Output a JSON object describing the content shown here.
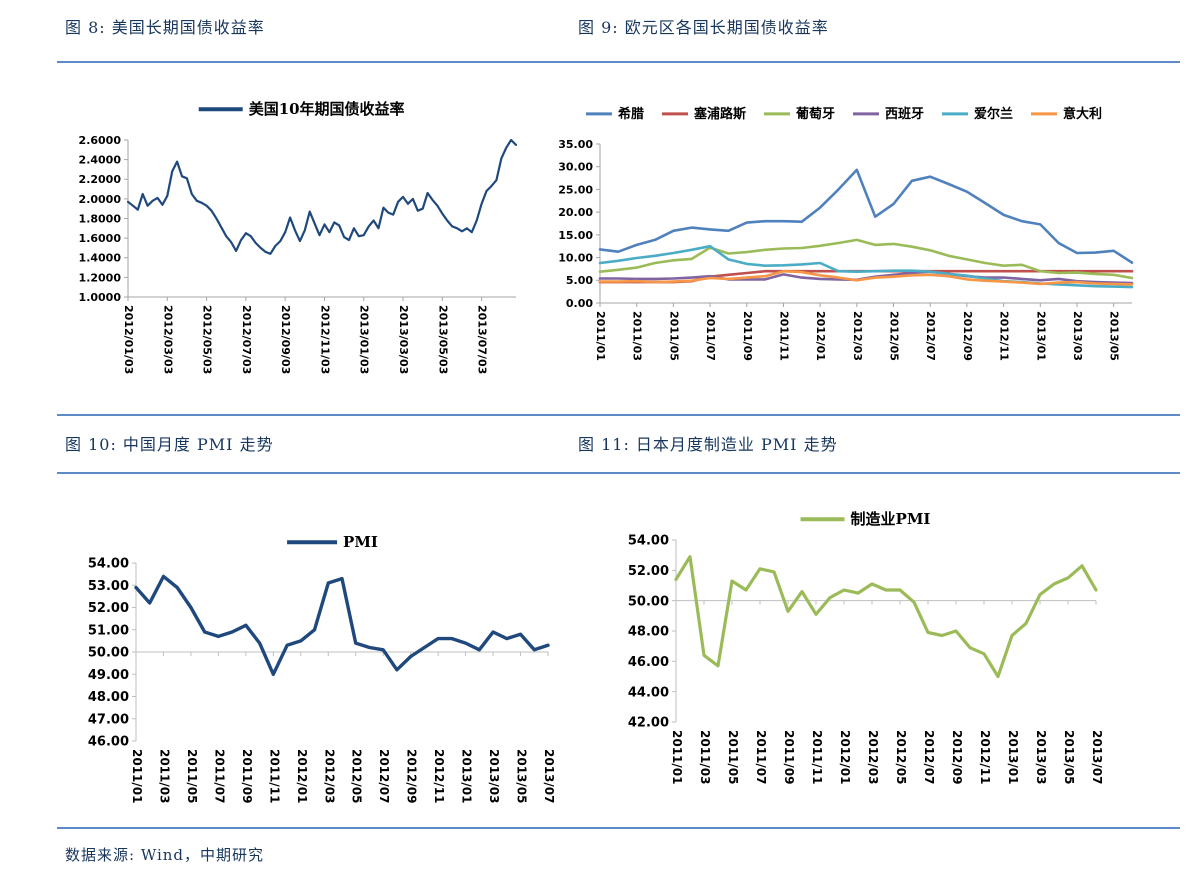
{
  "figures": {
    "fig8": {
      "title": "图 8: 美国长期国债收益率"
    },
    "fig9": {
      "title": "图 9: 欧元区各国长期国债收益率"
    },
    "fig10": {
      "title": "图 10: 中国月度 PMI 走势"
    },
    "fig11": {
      "title": "图 11: 日本月度制造业 PMI 走势"
    }
  },
  "footer": {
    "source_text": "数据来源: Wind，中期研究"
  },
  "colors": {
    "title_text": "#17365D",
    "divider": "#5E8AC7",
    "axis_gray": "#A6A6A6",
    "axis_light": "#BFBFBF",
    "navy_line": "#1F497D",
    "greece_blue": "#4F81BD",
    "cyprus_red": "#C0504D",
    "portugal_green": "#9BBB59",
    "spain_purple": "#8064A2",
    "ireland_teal": "#4BACC6",
    "italy_orange": "#F79646"
  },
  "chart_data": [
    {
      "id": "us-10y-treasury-yield",
      "type": "line",
      "title": "美国10年期国债收益率",
      "legend_position": "top",
      "grid": false,
      "x_labels": [
        "2012/01/03",
        "2012/03/03",
        "2012/05/03",
        "2012/07/03",
        "2012/09/03",
        "2012/11/03",
        "2013/01/03",
        "2013/03/03",
        "2013/05/03",
        "2013/07/03"
      ],
      "label_every": 8,
      "ylim": [
        1.0,
        2.6
      ],
      "y_ticks": [
        "1.0000",
        "1.2000",
        "1.4000",
        "1.6000",
        "1.8000",
        "2.0000",
        "2.2000",
        "2.4000",
        "2.6000"
      ],
      "x_axis_at": 1.0,
      "series": [
        {
          "name": "美国10年期国债收益率",
          "color": "#1F497D",
          "values": [
            1.97,
            1.93,
            1.89,
            2.05,
            1.93,
            1.98,
            2.01,
            1.94,
            2.03,
            2.28,
            2.38,
            2.23,
            2.21,
            2.05,
            1.98,
            1.96,
            1.93,
            1.88,
            1.8,
            1.71,
            1.62,
            1.56,
            1.47,
            1.58,
            1.65,
            1.62,
            1.55,
            1.5,
            1.46,
            1.44,
            1.52,
            1.57,
            1.66,
            1.81,
            1.68,
            1.57,
            1.68,
            1.87,
            1.75,
            1.63,
            1.74,
            1.66,
            1.76,
            1.73,
            1.61,
            1.58,
            1.7,
            1.62,
            1.63,
            1.72,
            1.78,
            1.7,
            1.91,
            1.86,
            1.84,
            1.97,
            2.02,
            1.95,
            2.0,
            1.88,
            1.9,
            2.06,
            1.99,
            1.93,
            1.85,
            1.78,
            1.72,
            1.7,
            1.67,
            1.7,
            1.66,
            1.78,
            1.95,
            2.08,
            2.13,
            2.19,
            2.41,
            2.52,
            2.6,
            2.55
          ]
        }
      ]
    },
    {
      "id": "eurozone-10y-yields",
      "type": "line",
      "title": "欧元区各国长期国债收益率",
      "legend_position": "top",
      "grid": false,
      "x_labels": [
        "2011/01",
        "2011/03",
        "2011/05",
        "2011/07",
        "2011/09",
        "2011/11",
        "2012/01",
        "2012/03",
        "2012/05",
        "2012/07",
        "2012/09",
        "2012/11",
        "2013/01",
        "2013/03",
        "2013/05"
      ],
      "label_every": 2,
      "ylim": [
        0,
        35
      ],
      "y_ticks": [
        "0.00",
        "5.00",
        "10.00",
        "15.00",
        "20.00",
        "25.00",
        "30.00",
        "35.00"
      ],
      "x_axis_at": 0,
      "series": [
        {
          "name": "希腊",
          "color": "#4F81BD",
          "values": [
            11.8,
            11.3,
            12.8,
            13.9,
            15.9,
            16.6,
            16.2,
            15.9,
            17.7,
            18.0,
            18.0,
            17.9,
            21.0,
            25.0,
            29.3,
            19.0,
            21.8,
            26.9,
            27.8,
            26.2,
            24.5,
            22.0,
            19.4,
            18.0,
            17.3,
            13.2,
            11.0,
            11.1,
            11.5,
            8.9
          ]
        },
        {
          "name": "塞浦路斯",
          "color": "#C0504D",
          "values": [
            4.6,
            4.6,
            4.6,
            4.6,
            4.6,
            4.8,
            5.8,
            6.2,
            6.6,
            7.0,
            7.0,
            7.0,
            7.0,
            7.0,
            7.0,
            7.0,
            7.0,
            7.0,
            7.0,
            7.0,
            7.0,
            7.0,
            7.0,
            7.0,
            7.0,
            7.0,
            7.0,
            7.0,
            7.0,
            7.0
          ]
        },
        {
          "name": "葡萄牙",
          "color": "#9BBB59",
          "values": [
            6.9,
            7.3,
            7.8,
            8.8,
            9.4,
            9.7,
            12.2,
            10.9,
            11.2,
            11.7,
            12.0,
            12.1,
            12.6,
            13.2,
            13.9,
            12.8,
            13.0,
            12.4,
            11.6,
            10.4,
            9.6,
            8.8,
            8.2,
            8.4,
            7.0,
            6.6,
            6.7,
            6.4,
            6.2,
            5.5
          ]
        },
        {
          "name": "西班牙",
          "color": "#8064A2",
          "values": [
            5.4,
            5.4,
            5.3,
            5.3,
            5.4,
            5.6,
            5.9,
            5.2,
            5.2,
            5.2,
            6.3,
            5.6,
            5.3,
            5.2,
            5.1,
            5.8,
            6.2,
            6.6,
            6.9,
            6.4,
            5.9,
            5.6,
            5.6,
            5.3,
            5.0,
            5.3,
            4.8,
            4.6,
            4.5,
            4.4
          ]
        },
        {
          "name": "爱尔兰",
          "color": "#4BACC6",
          "values": [
            8.8,
            9.3,
            9.9,
            10.4,
            11.0,
            11.7,
            12.5,
            9.6,
            8.6,
            8.2,
            8.3,
            8.5,
            8.8,
            7.0,
            6.9,
            7.0,
            7.1,
            7.1,
            6.9,
            6.4,
            6.0,
            5.4,
            4.8,
            4.6,
            4.3,
            4.1,
            3.9,
            3.7,
            3.6,
            3.5
          ]
        },
        {
          "name": "意大利",
          "color": "#F79646",
          "values": [
            4.7,
            4.7,
            4.8,
            4.6,
            4.7,
            4.9,
            5.5,
            5.3,
            5.6,
            5.9,
            7.0,
            6.8,
            6.1,
            5.6,
            5.0,
            5.6,
            5.8,
            6.1,
            6.2,
            5.9,
            5.2,
            4.9,
            4.7,
            4.5,
            4.2,
            4.5,
            4.6,
            4.3,
            4.2,
            4.1
          ]
        }
      ]
    },
    {
      "id": "china-monthly-pmi",
      "type": "line",
      "title": "PMI",
      "legend_position": "top",
      "grid": false,
      "x_labels": [
        "2011/01",
        "2011/03",
        "2011/05",
        "2011/07",
        "2011/09",
        "2011/11",
        "2012/01",
        "2012/03",
        "2012/05",
        "2012/07",
        "2012/09",
        "2012/11",
        "2013/01",
        "2013/03",
        "2013/05",
        "2013/07"
      ],
      "label_every": 2,
      "ylim": [
        46,
        54
      ],
      "y_ticks": [
        "46.00",
        "47.00",
        "48.00",
        "49.00",
        "50.00",
        "51.00",
        "52.00",
        "53.00",
        "54.00"
      ],
      "x_axis_at": 50,
      "series": [
        {
          "name": "PMI",
          "color": "#1F497D",
          "values": [
            52.9,
            52.2,
            53.4,
            52.9,
            52.0,
            50.9,
            50.7,
            50.9,
            51.2,
            50.4,
            49.0,
            50.3,
            50.5,
            51.0,
            53.1,
            53.3,
            50.4,
            50.2,
            50.1,
            49.2,
            49.8,
            50.2,
            50.6,
            50.6,
            50.4,
            50.1,
            50.9,
            50.6,
            50.8,
            50.1,
            50.3
          ]
        }
      ]
    },
    {
      "id": "japan-manufacturing-pmi",
      "type": "line",
      "title": "制造业PMI",
      "legend_position": "top",
      "grid": false,
      "x_labels": [
        "2011/01",
        "2011/03",
        "2011/05",
        "2011/07",
        "2011/09",
        "2011/11",
        "2012/01",
        "2012/03",
        "2012/05",
        "2012/07",
        "2012/09",
        "2012/11",
        "2013/01",
        "2013/03",
        "2013/05",
        "2013/07"
      ],
      "label_every": 2,
      "ylim": [
        42,
        54
      ],
      "y_ticks": [
        "42.00",
        "44.00",
        "46.00",
        "48.00",
        "50.00",
        "52.00",
        "54.00"
      ],
      "x_axis_at": 50,
      "series": [
        {
          "name": "制造业PMI",
          "color": "#9BBB59",
          "values": [
            51.4,
            52.9,
            46.4,
            45.7,
            51.3,
            50.7,
            52.1,
            51.9,
            49.3,
            50.6,
            49.1,
            50.2,
            50.7,
            50.5,
            51.1,
            50.7,
            50.7,
            49.9,
            47.9,
            47.7,
            48.0,
            46.9,
            46.5,
            45.0,
            47.7,
            48.5,
            50.4,
            51.1,
            51.5,
            52.3,
            50.7
          ]
        }
      ]
    }
  ]
}
